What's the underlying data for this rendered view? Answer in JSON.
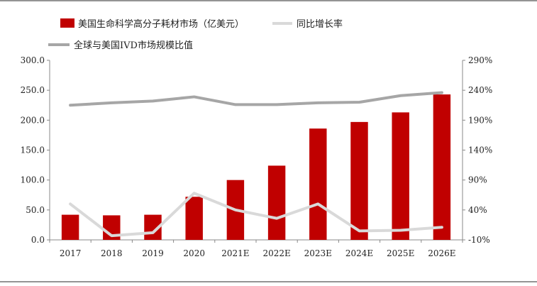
{
  "chart_data": {
    "type": "bar",
    "categories": [
      "2017",
      "2018",
      "2019",
      "2020",
      "2021E",
      "2022E",
      "2023E",
      "2024E",
      "2025E",
      "2026E"
    ],
    "series": [
      {
        "name": "美国生命科学高分子耗材市场（亿美元）",
        "kind": "bar",
        "axis": "left",
        "color": "#c00000",
        "values": [
          42,
          41,
          42,
          72,
          100,
          124,
          186,
          197,
          213,
          243
        ]
      },
      {
        "name": "同比增长率",
        "kind": "line",
        "axis": "right",
        "color": "#d9d9d9",
        "values": [
          50,
          -3,
          2,
          68,
          40,
          26,
          50,
          5,
          6,
          11
        ]
      },
      {
        "name": "全球与美国IVD市场规模比值",
        "kind": "line",
        "axis": "right",
        "color": "#a6a6a6",
        "values": [
          215,
          219,
          222,
          229,
          216,
          216,
          219,
          220,
          231,
          236
        ]
      }
    ],
    "ylim_left": [
      0,
      300
    ],
    "ylim_right": [
      -10,
      290
    ],
    "yticks_left": [
      "0.0",
      "50.0",
      "100.0",
      "150.0",
      "200.0",
      "250.0",
      "300.0"
    ],
    "yticks_right": [
      "-10%",
      "40%",
      "90%",
      "140%",
      "190%",
      "240%",
      "290%"
    ],
    "grid": false,
    "legend_position": "top-left"
  }
}
